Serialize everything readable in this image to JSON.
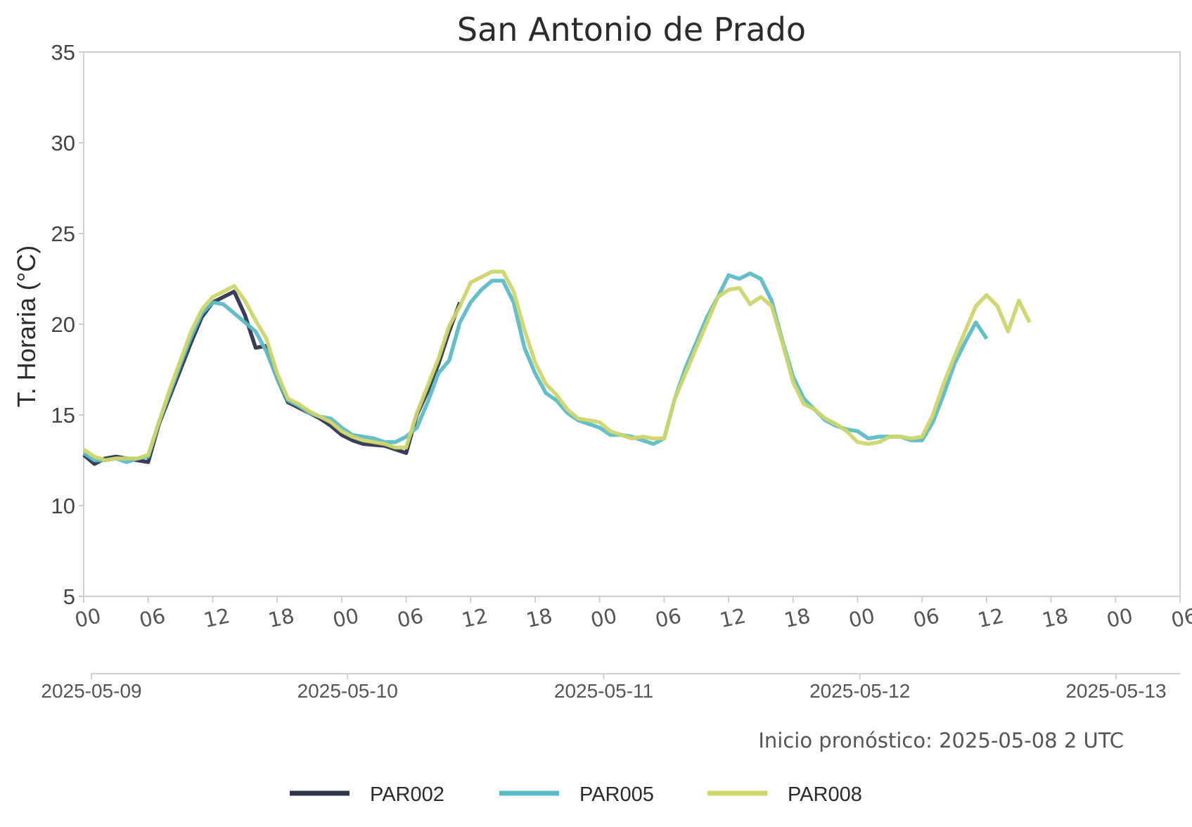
{
  "chart_data": {
    "type": "line",
    "title": "San Antonio de Prado",
    "ylabel": "T. Horaria (°C)",
    "ylim": [
      5,
      35
    ],
    "yticks": [
      5,
      10,
      15,
      20,
      25,
      30,
      35
    ],
    "xlim": [
      "2025-05-09T00:00",
      "2025-05-13T06:00"
    ],
    "hour_ticks": [
      "00",
      "06",
      "12",
      "18",
      "00",
      "06",
      "12",
      "18",
      "00",
      "06",
      "12",
      "18",
      "00",
      "06",
      "12",
      "18",
      "00",
      "06"
    ],
    "date_ticks": [
      "2025-05-09",
      "2025-05-10",
      "2025-05-11",
      "2025-05-12",
      "2025-05-13"
    ],
    "annotation": "Inicio pronóstico: 2025-05-08 2 UTC",
    "legend_position": "bottom-center",
    "grid": false,
    "series": [
      {
        "name": "PAR002",
        "color": "#30344f",
        "x": [
          "2025-05-09T00:00",
          "2025-05-09T01:00",
          "2025-05-09T02:00",
          "2025-05-09T03:00",
          "2025-05-09T04:00",
          "2025-05-09T05:00",
          "2025-05-09T06:00",
          "2025-05-09T07:00",
          "2025-05-09T08:00",
          "2025-05-09T09:00",
          "2025-05-09T10:00",
          "2025-05-09T11:00",
          "2025-05-09T12:00",
          "2025-05-09T13:00",
          "2025-05-09T14:00",
          "2025-05-09T15:00",
          "2025-05-09T16:00",
          "2025-05-09T17:00",
          "2025-05-09T18:00",
          "2025-05-09T19:00",
          "2025-05-09T20:00",
          "2025-05-09T21:00",
          "2025-05-09T22:00",
          "2025-05-09T23:00",
          "2025-05-10T00:00",
          "2025-05-10T01:00",
          "2025-05-10T02:00",
          "2025-05-10T03:00",
          "2025-05-10T04:00",
          "2025-05-10T05:00",
          "2025-05-10T06:00",
          "2025-05-10T07:00",
          "2025-05-10T08:00",
          "2025-05-10T09:00",
          "2025-05-10T10:00",
          "2025-05-10T11:00"
        ],
        "values": [
          12.8,
          12.3,
          12.6,
          12.7,
          12.6,
          12.5,
          12.4,
          14.5,
          16.0,
          17.5,
          19.0,
          20.4,
          21.2,
          21.5,
          21.8,
          20.5,
          18.7,
          18.8,
          17.0,
          15.7,
          15.4,
          15.1,
          14.8,
          14.4,
          13.9,
          13.6,
          13.4,
          13.35,
          13.3,
          13.1,
          12.9,
          15.0,
          16.3,
          17.8,
          19.6,
          21.2
        ]
      },
      {
        "name": "PAR005",
        "color": "#5cbcc6",
        "x": [
          "2025-05-09T00:00",
          "2025-05-09T01:00",
          "2025-05-09T02:00",
          "2025-05-09T03:00",
          "2025-05-09T04:00",
          "2025-05-09T05:00",
          "2025-05-09T06:00",
          "2025-05-09T07:00",
          "2025-05-09T08:00",
          "2025-05-09T09:00",
          "2025-05-09T10:00",
          "2025-05-09T11:00",
          "2025-05-09T12:00",
          "2025-05-09T13:00",
          "2025-05-09T14:00",
          "2025-05-09T15:00",
          "2025-05-09T16:00",
          "2025-05-09T17:00",
          "2025-05-09T18:00",
          "2025-05-09T19:00",
          "2025-05-09T20:00",
          "2025-05-09T21:00",
          "2025-05-09T22:00",
          "2025-05-09T23:00",
          "2025-05-10T00:00",
          "2025-05-10T01:00",
          "2025-05-10T02:00",
          "2025-05-10T03:00",
          "2025-05-10T04:00",
          "2025-05-10T05:00",
          "2025-05-10T06:00",
          "2025-05-10T07:00",
          "2025-05-10T08:00",
          "2025-05-10T09:00",
          "2025-05-10T10:00",
          "2025-05-10T11:00",
          "2025-05-10T12:00",
          "2025-05-10T13:00",
          "2025-05-10T14:00",
          "2025-05-10T15:00",
          "2025-05-10T16:00",
          "2025-05-10T17:00",
          "2025-05-10T18:00",
          "2025-05-10T19:00",
          "2025-05-10T20:00",
          "2025-05-10T21:00",
          "2025-05-10T22:00",
          "2025-05-10T23:00",
          "2025-05-11T00:00",
          "2025-05-11T01:00",
          "2025-05-11T02:00",
          "2025-05-11T03:00",
          "2025-05-11T04:00",
          "2025-05-11T05:00",
          "2025-05-11T06:00",
          "2025-05-11T07:00",
          "2025-05-11T08:00",
          "2025-05-11T09:00",
          "2025-05-11T10:00",
          "2025-05-11T11:00",
          "2025-05-11T12:00",
          "2025-05-11T13:00",
          "2025-05-11T14:00",
          "2025-05-11T15:00",
          "2025-05-11T16:00",
          "2025-05-11T17:00",
          "2025-05-11T18:00",
          "2025-05-11T19:00",
          "2025-05-11T20:00",
          "2025-05-11T21:00",
          "2025-05-11T22:00",
          "2025-05-11T23:00",
          "2025-05-12T00:00",
          "2025-05-12T01:00",
          "2025-05-12T02:00",
          "2025-05-12T03:00",
          "2025-05-12T04:00",
          "2025-05-12T05:00",
          "2025-05-12T06:00",
          "2025-05-12T07:00",
          "2025-05-12T08:00",
          "2025-05-12T09:00",
          "2025-05-12T10:00",
          "2025-05-12T11:00",
          "2025-05-12T12:00"
        ],
        "values": [
          12.9,
          12.5,
          12.5,
          12.6,
          12.4,
          12.6,
          12.7,
          14.6,
          16.2,
          17.8,
          19.3,
          20.6,
          21.2,
          21.1,
          20.6,
          20.1,
          19.6,
          18.5,
          17.0,
          15.8,
          15.5,
          15.1,
          14.9,
          14.8,
          14.3,
          13.9,
          13.8,
          13.7,
          13.5,
          13.5,
          13.8,
          14.3,
          15.7,
          17.3,
          18.0,
          20.1,
          21.2,
          21.9,
          22.4,
          22.4,
          21.2,
          18.7,
          17.3,
          16.2,
          15.8,
          15.1,
          14.7,
          14.5,
          14.3,
          13.9,
          13.9,
          13.8,
          13.6,
          13.4,
          13.7,
          15.9,
          17.6,
          19.0,
          20.4,
          21.5,
          22.7,
          22.5,
          22.8,
          22.5,
          21.3,
          19.1,
          17.1,
          15.9,
          15.3,
          14.7,
          14.4,
          14.2,
          14.1,
          13.7,
          13.8,
          13.8,
          13.8,
          13.6,
          13.6,
          14.6,
          16.1,
          17.8,
          19.0,
          20.1,
          19.2
        ]
      },
      {
        "name": "PAR008",
        "color": "#cdd56b",
        "x": [
          "2025-05-09T00:00",
          "2025-05-09T01:00",
          "2025-05-09T02:00",
          "2025-05-09T03:00",
          "2025-05-09T04:00",
          "2025-05-09T05:00",
          "2025-05-09T06:00",
          "2025-05-09T07:00",
          "2025-05-09T08:00",
          "2025-05-09T09:00",
          "2025-05-09T10:00",
          "2025-05-09T11:00",
          "2025-05-09T12:00",
          "2025-05-09T13:00",
          "2025-05-09T14:00",
          "2025-05-09T15:00",
          "2025-05-09T16:00",
          "2025-05-09T17:00",
          "2025-05-09T18:00",
          "2025-05-09T19:00",
          "2025-05-09T20:00",
          "2025-05-09T21:00",
          "2025-05-09T22:00",
          "2025-05-09T23:00",
          "2025-05-10T00:00",
          "2025-05-10T01:00",
          "2025-05-10T02:00",
          "2025-05-10T03:00",
          "2025-05-10T04:00",
          "2025-05-10T05:00",
          "2025-05-10T06:00",
          "2025-05-10T07:00",
          "2025-05-10T08:00",
          "2025-05-10T09:00",
          "2025-05-10T10:00",
          "2025-05-10T11:00",
          "2025-05-10T12:00",
          "2025-05-10T13:00",
          "2025-05-10T14:00",
          "2025-05-10T15:00",
          "2025-05-10T16:00",
          "2025-05-10T17:00",
          "2025-05-10T18:00",
          "2025-05-10T19:00",
          "2025-05-10T20:00",
          "2025-05-10T21:00",
          "2025-05-10T22:00",
          "2025-05-10T23:00",
          "2025-05-11T00:00",
          "2025-05-11T01:00",
          "2025-05-11T02:00",
          "2025-05-11T03:00",
          "2025-05-11T04:00",
          "2025-05-11T05:00",
          "2025-05-11T06:00",
          "2025-05-11T07:00",
          "2025-05-11T08:00",
          "2025-05-11T09:00",
          "2025-05-11T10:00",
          "2025-05-11T11:00",
          "2025-05-11T12:00",
          "2025-05-11T13:00",
          "2025-05-11T14:00",
          "2025-05-11T15:00",
          "2025-05-11T16:00",
          "2025-05-11T17:00",
          "2025-05-11T18:00",
          "2025-05-11T19:00",
          "2025-05-11T20:00",
          "2025-05-11T21:00",
          "2025-05-11T22:00",
          "2025-05-11T23:00",
          "2025-05-12T00:00",
          "2025-05-12T01:00",
          "2025-05-12T02:00",
          "2025-05-12T03:00",
          "2025-05-12T04:00",
          "2025-05-12T05:00",
          "2025-05-12T06:00",
          "2025-05-12T07:00",
          "2025-05-12T08:00",
          "2025-05-12T09:00",
          "2025-05-12T10:00",
          "2025-05-12T11:00",
          "2025-05-12T12:00",
          "2025-05-12T13:00",
          "2025-05-12T14:00",
          "2025-05-12T15:00",
          "2025-05-12T16:00"
        ],
        "values": [
          13.1,
          12.7,
          12.5,
          12.6,
          12.6,
          12.6,
          12.8,
          14.6,
          16.4,
          18.0,
          19.6,
          20.8,
          21.5,
          21.8,
          22.1,
          21.3,
          20.2,
          19.2,
          17.3,
          15.9,
          15.6,
          15.2,
          14.9,
          14.6,
          14.1,
          13.8,
          13.6,
          13.5,
          13.4,
          13.2,
          13.2,
          15.1,
          16.6,
          18.1,
          19.9,
          21.0,
          22.3,
          22.6,
          22.9,
          22.9,
          21.8,
          19.7,
          17.9,
          16.7,
          16.1,
          15.3,
          14.8,
          14.7,
          14.6,
          14.1,
          13.9,
          13.7,
          13.8,
          13.7,
          13.7,
          15.9,
          17.3,
          18.7,
          20.1,
          21.5,
          21.9,
          22.0,
          21.1,
          21.5,
          21.0,
          19.0,
          16.8,
          15.6,
          15.3,
          14.8,
          14.5,
          14.1,
          13.5,
          13.4,
          13.5,
          13.8,
          13.8,
          13.7,
          13.8,
          15.0,
          16.7,
          18.2,
          19.6,
          21.0,
          21.6,
          21.0,
          19.6,
          21.3,
          20.1
        ]
      }
    ]
  }
}
